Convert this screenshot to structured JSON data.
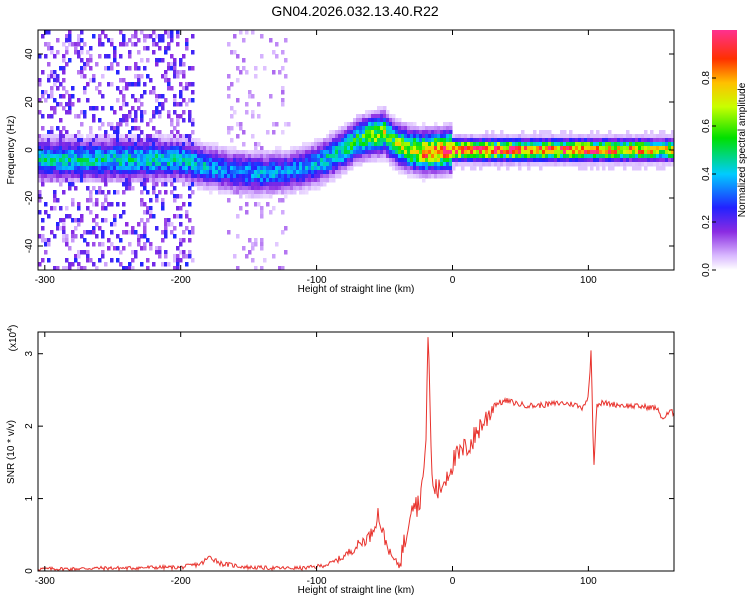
{
  "title": "GN04.2026.032.13.40.R22",
  "colors": {
    "snr_line": "#e8322c",
    "plot_bg": "#ffffff",
    "axis": "#000000"
  },
  "chart_data": [
    {
      "type": "heatmap",
      "name": "spectrogram",
      "xlabel": "Height of straight line (km)",
      "ylabel": "Frequency (Hz)",
      "xlim": [
        -305,
        163
      ],
      "ylim": [
        -50,
        50
      ],
      "xticks": [
        -300,
        -200,
        -100,
        0,
        100
      ],
      "yticks": [
        -40,
        -20,
        0,
        20,
        40
      ],
      "colorbar": {
        "label": "Normalized spectral amplitude",
        "range": [
          0,
          1
        ],
        "ticks": [
          "0.0",
          "0.2",
          "0.4",
          "0.6",
          "0.8"
        ],
        "tick_values": [
          0.0,
          0.2,
          0.4,
          0.6,
          0.8
        ],
        "colormap": "violet-blue-cyan-green-yellow-red"
      },
      "ridge_description_points": {
        "x": [
          -200,
          -180,
          -160,
          -140,
          -120,
          -100,
          -90,
          -80,
          -70,
          -60,
          -50,
          -45,
          -40,
          -30,
          -20,
          0,
          50,
          100,
          163
        ],
        "y": [
          -4,
          -7,
          -9,
          -10,
          -9,
          -6,
          -3,
          0,
          4,
          6,
          7,
          4,
          2,
          0,
          -1,
          0,
          0,
          0,
          0
        ],
        "amplitude": [
          0.45,
          0.4,
          0.35,
          0.38,
          0.35,
          0.4,
          0.45,
          0.5,
          0.55,
          0.65,
          0.7,
          0.6,
          0.65,
          0.75,
          0.85,
          0.95,
          0.95,
          0.9,
          0.75
        ]
      }
    },
    {
      "type": "line",
      "name": "snr",
      "xlabel": "Height of straight line (km)",
      "ylabel": "SNR (10 * v/v)",
      "yscale_label": "(x10",
      "yscale_exp": "4",
      "xlim": [
        -305,
        163
      ],
      "ylim": [
        0,
        3.3
      ],
      "xticks": [
        -300,
        -200,
        -100,
        0,
        100
      ],
      "yticks": [
        0,
        1,
        2,
        3
      ],
      "x": [
        -305,
        -280,
        -260,
        -240,
        -220,
        -200,
        -185,
        -178,
        -170,
        -150,
        -130,
        -110,
        -100,
        -90,
        -80,
        -70,
        -60,
        -55,
        -50,
        -45,
        -40,
        -35,
        -30,
        -25,
        -20,
        -18,
        -15,
        -10,
        -5,
        0,
        5,
        10,
        15,
        20,
        25,
        30,
        40,
        50,
        60,
        70,
        80,
        90,
        95,
        100,
        102,
        104,
        106,
        110,
        120,
        130,
        140,
        150,
        155,
        160,
        163
      ],
      "y": [
        0.03,
        0.03,
        0.04,
        0.04,
        0.05,
        0.05,
        0.1,
        0.2,
        0.1,
        0.05,
        0.04,
        0.04,
        0.06,
        0.1,
        0.2,
        0.35,
        0.5,
        0.8,
        0.45,
        0.2,
        0.1,
        0.4,
        1.0,
        0.9,
        1.5,
        3.3,
        1.2,
        1.1,
        1.3,
        1.5,
        1.6,
        1.7,
        1.8,
        2.0,
        2.1,
        2.3,
        2.35,
        2.3,
        2.28,
        2.3,
        2.32,
        2.3,
        2.25,
        2.4,
        3.05,
        1.4,
        2.3,
        2.32,
        2.3,
        2.28,
        2.27,
        2.25,
        2.1,
        2.2,
        2.18
      ]
    }
  ]
}
